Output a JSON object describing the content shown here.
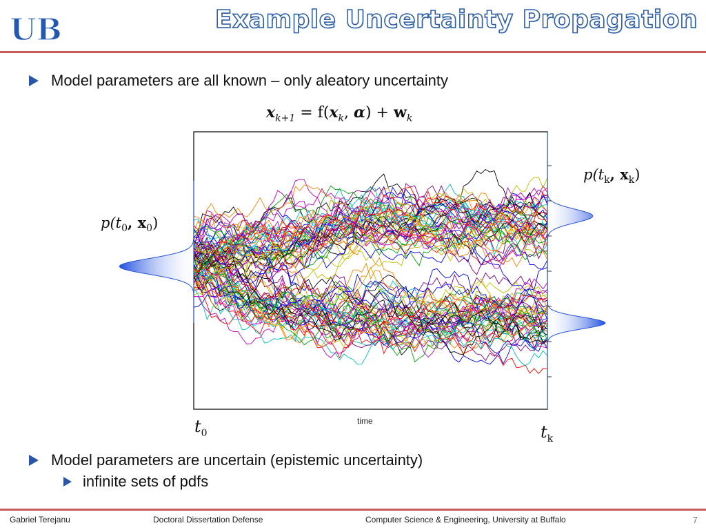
{
  "header": {
    "title": "Example Uncertainty Propagation",
    "logo_text": "UB"
  },
  "bullets": {
    "first": "Model parameters are all known – only aleatory uncertainty",
    "second": "Model parameters are uncertain (epistemic uncertainty)",
    "second_sub": "infinite sets of pdfs"
  },
  "figure": {
    "equation": {
      "lhs_var": "x",
      "lhs_sub": "k+1",
      "eq": " = f(",
      "arg_var": "x",
      "arg_sub": "k",
      "comma": ", ",
      "alpha": "α",
      "close": ")  +  ",
      "noise": "w",
      "noise_sub": "k"
    },
    "p0": {
      "fn": "p(t",
      "sub1": "0",
      "mid": ", x",
      "sub2": "0",
      "end": ")"
    },
    "pk": {
      "fn": "p(t",
      "sub1": "k",
      "mid": ", x",
      "sub2": "k",
      "end": ")"
    },
    "t0": {
      "var": "t",
      "sub": "0"
    },
    "tk": {
      "var": "t",
      "sub": "k"
    },
    "xlabel": "time",
    "colors": {
      "density": "#1f4fe0",
      "frame": "#000000"
    },
    "trajectory_palette": [
      "#0000ff",
      "#ff0000",
      "#00a000",
      "#c000c0",
      "#00c0c0",
      "#c0c000",
      "#000000",
      "#ff8000",
      "#800080"
    ]
  },
  "footer": {
    "author": "Gabriel Terejanu",
    "event": "Doctoral Dissertation Defense",
    "affiliation": "Computer Science & Engineering, University at Buffalo",
    "page": "7"
  }
}
